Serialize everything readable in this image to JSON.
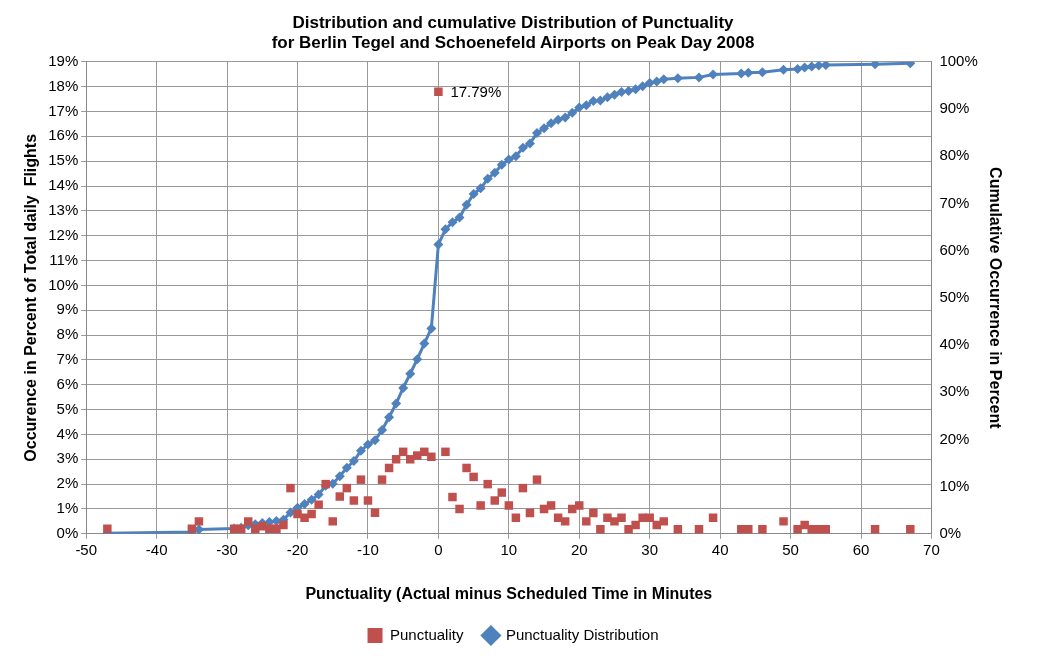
{
  "chart_data": {
    "type": "scatter",
    "title": "Distribution and cumulative Distribution of Punctuality\nfor Berlin Tegel and Schoenefeld Airports on Peak Day 2008",
    "xlabel": "Punctuality (Actual minus Scheduled Time in Minutes",
    "ylabel": "Occurence in Percent of Total daily  Flights",
    "y2label": "Cumulative Occurrence in Percent",
    "xlim": [
      -50,
      70
    ],
    "xticks": [
      -50,
      -40,
      -30,
      -20,
      -10,
      0,
      10,
      20,
      30,
      40,
      50,
      60,
      70
    ],
    "ylim": [
      0,
      19
    ],
    "yticks": [
      {
        "value": 0,
        "label": "0%"
      },
      {
        "value": 1,
        "label": "1%"
      },
      {
        "value": 2,
        "label": "2%"
      },
      {
        "value": 3,
        "label": "3%"
      },
      {
        "value": 4,
        "label": "4%"
      },
      {
        "value": 5,
        "label": "5%"
      },
      {
        "value": 6,
        "label": "6%"
      },
      {
        "value": 7,
        "label": "7%"
      },
      {
        "value": 8,
        "label": "8%"
      },
      {
        "value": 9,
        "label": "9%"
      },
      {
        "value": 10,
        "label": "10%"
      },
      {
        "value": 11,
        "label": "11%"
      },
      {
        "value": 12,
        "label": "12%"
      },
      {
        "value": 13,
        "label": "13%"
      },
      {
        "value": 14,
        "label": "14%"
      },
      {
        "value": 15,
        "label": "15%"
      },
      {
        "value": 16,
        "label": "16%"
      },
      {
        "value": 17,
        "label": "17%"
      },
      {
        "value": 18,
        "label": "18%"
      },
      {
        "value": 19,
        "label": "19%"
      }
    ],
    "y2lim": [
      0,
      100
    ],
    "y2ticks": [
      {
        "value": 0,
        "label": "0%"
      },
      {
        "value": 10,
        "label": "10%"
      },
      {
        "value": 20,
        "label": "20%"
      },
      {
        "value": 30,
        "label": "30%"
      },
      {
        "value": 40,
        "label": "40%"
      },
      {
        "value": 50,
        "label": "50%"
      },
      {
        "value": 60,
        "label": "60%"
      },
      {
        "value": 70,
        "label": "70%"
      },
      {
        "value": 80,
        "label": "80%"
      },
      {
        "value": 90,
        "label": "90%"
      },
      {
        "value": 100,
        "label": "100%"
      }
    ],
    "grid": true,
    "legend": "bottom",
    "series": [
      {
        "name": "Punctuality",
        "type": "scatter",
        "marker": "square",
        "color": "#c0504d",
        "x": [
          -47,
          -35,
          -34,
          -29,
          -28,
          -27,
          -26,
          -25,
          -24,
          -23,
          -22,
          -21,
          -20,
          -19,
          -18,
          -17,
          -16,
          -15,
          -14,
          -13,
          -12,
          -11,
          -10,
          -9,
          -8,
          -7,
          -6,
          -5,
          -4,
          -3,
          -2,
          -1,
          0,
          1,
          2,
          3,
          4,
          5,
          6,
          7,
          8,
          9,
          10,
          11,
          12,
          13,
          14,
          15,
          16,
          17,
          18,
          19,
          20,
          21,
          22,
          23,
          24,
          25,
          26,
          27,
          28,
          29,
          30,
          31,
          32,
          34,
          37,
          39,
          43,
          44,
          46,
          49,
          51,
          52,
          53,
          54,
          55,
          62,
          67
        ],
        "values": [
          0.2,
          0.2,
          0.5,
          0.2,
          0.2,
          0.5,
          0.2,
          0.3,
          0.2,
          0.2,
          0.35,
          1.84,
          0.8,
          0.65,
          0.8,
          1.17,
          2.0,
          0.5,
          1.5,
          1.84,
          1.34,
          2.18,
          1.34,
          0.85,
          2.18,
          2.65,
          3.0,
          3.3,
          3.0,
          3.15,
          3.3,
          3.1,
          17.79,
          3.3,
          1.48,
          1.0,
          2.65,
          2.29,
          1.14,
          2.0,
          1.34,
          1.66,
          1.14,
          0.65,
          1.84,
          0.84,
          2.18,
          1.0,
          1.14,
          0.65,
          0.5,
          1.0,
          1.14,
          0.5,
          0.84,
          0.18,
          0.65,
          0.5,
          0.65,
          0.18,
          0.35,
          0.65,
          0.65,
          0.35,
          0.5,
          0.18,
          0.18,
          0.65,
          0.18,
          0.18,
          0.18,
          0.5,
          0.18,
          0.35,
          0.18,
          0.18,
          0.18,
          0.18,
          0.18
        ],
        "value_labels": [
          null,
          null,
          null,
          null,
          null,
          null,
          null,
          null,
          null,
          null,
          null,
          null,
          null,
          null,
          null,
          null,
          null,
          null,
          null,
          null,
          null,
          null,
          null,
          null,
          null,
          null,
          null,
          null,
          null,
          null,
          null,
          null,
          "17.79%",
          null,
          null,
          null,
          null,
          null,
          null,
          null,
          null,
          null,
          null,
          null,
          null,
          null,
          null,
          null,
          null,
          null,
          null,
          null,
          null,
          null,
          null,
          null,
          null,
          null,
          null,
          null,
          null,
          null,
          null,
          null,
          null,
          null,
          null,
          null,
          null,
          null,
          null,
          null,
          null,
          null,
          null,
          null,
          null,
          null,
          null
        ]
      },
      {
        "name": "Punctuality Distribution",
        "type": "line",
        "axis": "y2",
        "marker": "diamond",
        "line_style": "solid",
        "color": "#4f81bd",
        "x": [
          -47,
          -35,
          -34,
          -29,
          -28,
          -27,
          -26,
          -25,
          -24,
          -23,
          -22,
          -21,
          -20,
          -19,
          -18,
          -17,
          -16,
          -15,
          -14,
          -13,
          -12,
          -11,
          -10,
          -9,
          -8,
          -7,
          -6,
          -5,
          -4,
          -3,
          -2,
          -1,
          0,
          1,
          2,
          3,
          4,
          5,
          6,
          7,
          8,
          9,
          10,
          11,
          12,
          13,
          14,
          15,
          16,
          17,
          18,
          19,
          20,
          21,
          22,
          23,
          24,
          25,
          26,
          27,
          28,
          29,
          30,
          31,
          32,
          34,
          37,
          39,
          43,
          44,
          46,
          49,
          51,
          52,
          53,
          54,
          55,
          62,
          67
        ],
        "values": [
          0.1,
          0.4,
          0.9,
          1.1,
          1.3,
          1.8,
          2.0,
          2.3,
          2.5,
          2.7,
          3.0,
          4.5,
          5.5,
          6.3,
          7.2,
          8.3,
          10.2,
          10.6,
          12.2,
          14.0,
          15.4,
          17.6,
          18.9,
          19.8,
          22.0,
          24.7,
          27.6,
          30.9,
          33.9,
          37.0,
          40.3,
          43.5,
          61.3,
          64.5,
          66.0,
          67.0,
          69.7,
          72.0,
          73.2,
          75.2,
          76.5,
          78.2,
          79.3,
          80.0,
          81.8,
          82.7,
          84.9,
          85.9,
          87.0,
          87.7,
          88.2,
          89.2,
          90.3,
          90.8,
          91.7,
          91.8,
          92.5,
          93.0,
          93.6,
          93.8,
          94.2,
          94.8,
          95.5,
          95.8,
          96.3,
          96.5,
          96.7,
          97.3,
          97.5,
          97.7,
          97.8,
          98.3,
          98.5,
          98.8,
          99.0,
          99.2,
          99.3,
          99.5,
          99.7
        ]
      }
    ]
  }
}
